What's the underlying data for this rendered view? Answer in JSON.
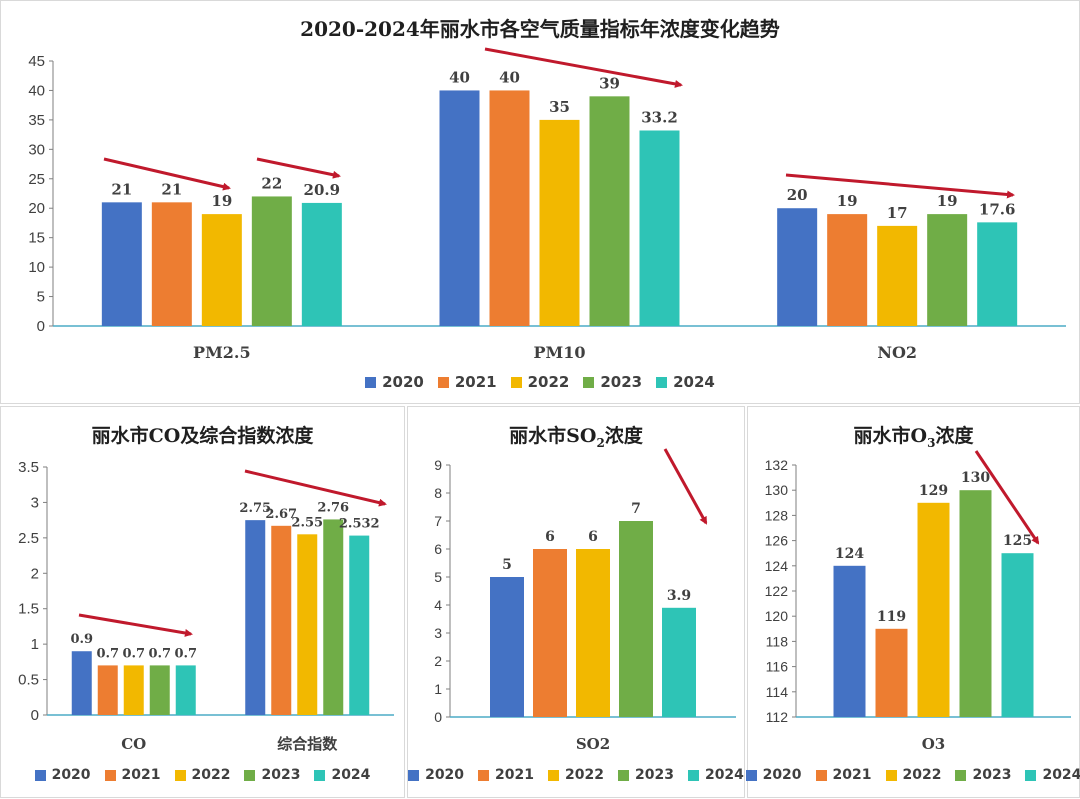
{
  "legend_years": [
    "2020",
    "2021",
    "2022",
    "2023",
    "2024"
  ],
  "series_colors": [
    "#4472c4",
    "#ed7d31",
    "#f2b800",
    "#70ad47",
    "#2ec4b6"
  ],
  "arrow_color": "#c0192c",
  "chart_data": [
    {
      "type": "bar",
      "title": "2020-2024年丽水市各空气质量指标年浓度变化趋势",
      "categories": [
        "PM2.5",
        "PM10",
        "NO2"
      ],
      "series": [
        {
          "name": "2020",
          "values": [
            21,
            40,
            20
          ]
        },
        {
          "name": "2021",
          "values": [
            21,
            40,
            19
          ]
        },
        {
          "name": "2022",
          "values": [
            19,
            35,
            17
          ]
        },
        {
          "name": "2023",
          "values": [
            22,
            39,
            19
          ]
        },
        {
          "name": "2024",
          "values": [
            20.9,
            33.2,
            17.6
          ]
        }
      ],
      "data_labels": [
        [
          "21",
          "40",
          "20"
        ],
        [
          "21",
          "40",
          "19"
        ],
        [
          "19",
          "35",
          "17"
        ],
        [
          "22",
          "39",
          "19"
        ],
        [
          "20.9",
          "33.2",
          "17.6"
        ]
      ],
      "ylim": [
        0,
        45
      ],
      "yticks": [
        "0",
        "5",
        "10",
        "15",
        "20",
        "25",
        "30",
        "35",
        "40",
        "45"
      ],
      "grid": false,
      "legend": "bottom",
      "arrows": "decreasing-trend"
    },
    {
      "type": "bar",
      "title": "丽水市CO及综合指数浓度",
      "categories": [
        "CO",
        "综合指数"
      ],
      "series": [
        {
          "name": "2020",
          "values": [
            0.9,
            2.75
          ]
        },
        {
          "name": "2021",
          "values": [
            0.7,
            2.67
          ]
        },
        {
          "name": "2022",
          "values": [
            0.7,
            2.55
          ]
        },
        {
          "name": "2023",
          "values": [
            0.7,
            2.76
          ]
        },
        {
          "name": "2024",
          "values": [
            0.7,
            2.532
          ]
        }
      ],
      "data_labels": [
        [
          "0.9",
          "2.75"
        ],
        [
          "0.7",
          "2.67"
        ],
        [
          "0.7",
          "2.55"
        ],
        [
          "0.7",
          "2.76"
        ],
        [
          "0.7",
          "2.532"
        ]
      ],
      "ylim": [
        0,
        3.5
      ],
      "yticks": [
        "0",
        "0.5",
        "1",
        "1.5",
        "2",
        "2.5",
        "3",
        "3.5"
      ],
      "grid": false,
      "legend": "bottom"
    },
    {
      "type": "bar",
      "title_main": "丽水市SO",
      "title_sub": "2",
      "title_tail": "浓度",
      "categories": [
        "SO2"
      ],
      "series": [
        {
          "name": "2020",
          "values": [
            5
          ]
        },
        {
          "name": "2021",
          "values": [
            6
          ]
        },
        {
          "name": "2022",
          "values": [
            6
          ]
        },
        {
          "name": "2023",
          "values": [
            7
          ]
        },
        {
          "name": "2024",
          "values": [
            3.9
          ]
        }
      ],
      "data_labels": [
        [
          "5"
        ],
        [
          "6"
        ],
        [
          "6"
        ],
        [
          "7"
        ],
        [
          "3.9"
        ]
      ],
      "ylim": [
        0,
        9
      ],
      "yticks": [
        "0",
        "1",
        "2",
        "3",
        "4",
        "5",
        "6",
        "7",
        "8",
        "9"
      ],
      "grid": false,
      "legend": "bottom"
    },
    {
      "type": "bar",
      "title_main": "丽水市O",
      "title_sub": "3",
      "title_tail": "浓度",
      "categories": [
        "O3"
      ],
      "series": [
        {
          "name": "2020",
          "values": [
            124
          ]
        },
        {
          "name": "2021",
          "values": [
            119
          ]
        },
        {
          "name": "2022",
          "values": [
            129
          ]
        },
        {
          "name": "2023",
          "values": [
            130
          ]
        },
        {
          "name": "2024",
          "values": [
            125
          ]
        }
      ],
      "data_labels": [
        [
          "124"
        ],
        [
          "119"
        ],
        [
          "129"
        ],
        [
          "130"
        ],
        [
          "125"
        ]
      ],
      "ylim": [
        112,
        132
      ],
      "yticks": [
        "112",
        "114",
        "116",
        "118",
        "120",
        "122",
        "124",
        "126",
        "128",
        "130",
        "132"
      ],
      "grid": false,
      "legend": "bottom"
    }
  ]
}
